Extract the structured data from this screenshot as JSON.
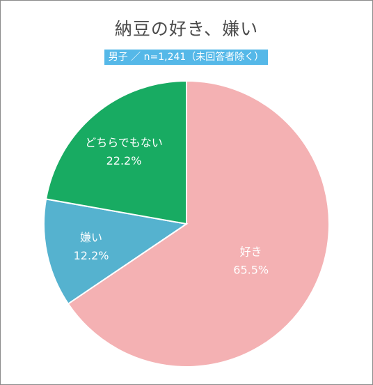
{
  "chart_data": {
    "type": "pie",
    "title": "納豆の好き、嫌い",
    "subtitle": "男子 ／ n=1,241（未回答者除く）",
    "slices": [
      {
        "label": "好き",
        "value": 65.5,
        "value_label": "65.5%",
        "color": "#f4b1b3"
      },
      {
        "label": "嫌い",
        "value": 12.2,
        "value_label": "12.2%",
        "color": "#55b2cf"
      },
      {
        "label": "どちらでもない",
        "value": 22.2,
        "value_label": "22.2%",
        "color": "#18ab62"
      }
    ],
    "start_angle": "12 o'clock",
    "direction": "clockwise",
    "slice_border_color": "#ffffff"
  }
}
